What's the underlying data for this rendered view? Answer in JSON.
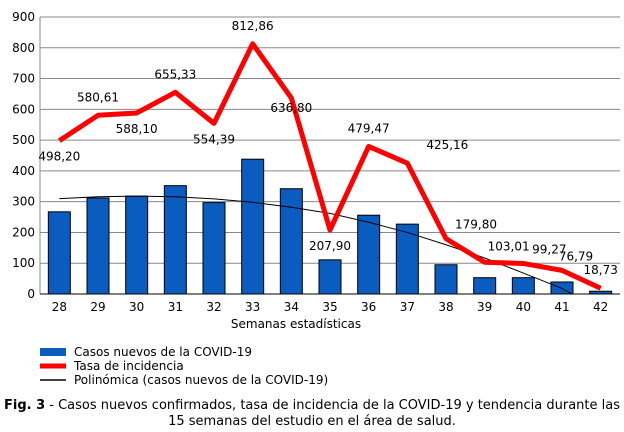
{
  "chart_data": {
    "type": "bar",
    "categories": [
      "28",
      "29",
      "30",
      "31",
      "32",
      "33",
      "34",
      "35",
      "36",
      "37",
      "38",
      "39",
      "40",
      "41",
      "42"
    ],
    "xlabel": "Semanas estadísticas",
    "ylabel": "",
    "ylim": [
      0,
      900
    ],
    "yticks": [
      "0",
      "100",
      "200",
      "300",
      "400",
      "500",
      "600",
      "700",
      "800",
      "900"
    ],
    "grid": true,
    "series": [
      {
        "name": "Casos nuevos de la COVID-19",
        "type": "bar",
        "color": "#0a5cbf",
        "values": [
          267,
          312,
          318,
          352,
          297,
          438,
          342,
          111,
          256,
          227,
          95,
          53,
          53,
          39,
          9
        ]
      },
      {
        "name": "Tasa de incidencia",
        "type": "line",
        "color": "#ff0000",
        "values": [
          498.2,
          580.61,
          588.1,
          655.33,
          554.39,
          812.86,
          636.8,
          207.9,
          479.47,
          425.16,
          179.8,
          103.01,
          99.27,
          76.79,
          18.73
        ],
        "labels": [
          "498,20",
          "580,61",
          "588,10",
          "655,33",
          "554,39",
          "812,86",
          "636,80",
          "207,90",
          "479,47",
          "425,16",
          "179,80",
          "103,01",
          "99,27",
          "76,79",
          "18,73"
        ]
      },
      {
        "name": "Polinómica (casos nuevos de la COVID-19)",
        "type": "line",
        "color": "#000000",
        "values": [
          310,
          316,
          318,
          316,
          309,
          298,
          282,
          262,
          233,
          200,
          160,
          117,
          68,
          18,
          null
        ]
      }
    ],
    "legend": "bottom-left"
  },
  "caption": {
    "bold": "Fig. 3",
    "text": " - Casos nuevos confirmados, tasa de incidencia de la COVID-19 y tendencia durante las 15 semanas del estudio en el área de salud."
  }
}
